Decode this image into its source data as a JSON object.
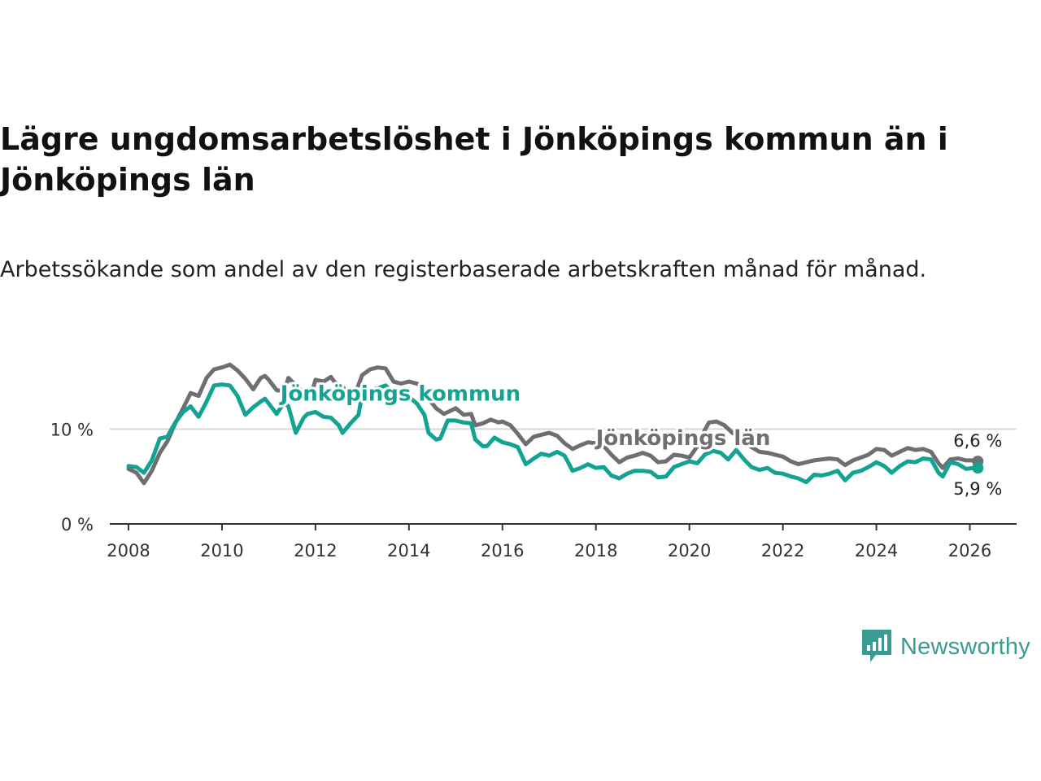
{
  "colors": {
    "kommun": "#12a393",
    "lan": "#6e6e73",
    "grid": "#d8d8d8",
    "axis": "#333333",
    "brand": "#3a9b93"
  },
  "chart_data": {
    "type": "line",
    "title": "Lägre ungdomsarbetslöshet i Jönköpings kommun än i Jönköpings län",
    "subtitle": "Arbetssökande som andel av den registerbaserade arbetskraften månad för månad.",
    "xlabel": "",
    "ylabel": "",
    "xlim": [
      2007.6,
      2027.0
    ],
    "ylim": [
      0,
      17.5
    ],
    "x_ticks": [
      {
        "value": 2008,
        "label": "2008"
      },
      {
        "value": 2010,
        "label": "2010"
      },
      {
        "value": 2012,
        "label": "2012"
      },
      {
        "value": 2014,
        "label": "2014"
      },
      {
        "value": 2016,
        "label": "2016"
      },
      {
        "value": 2018,
        "label": "2018"
      },
      {
        "value": 2020,
        "label": "2020"
      },
      {
        "value": 2022,
        "label": "2022"
      },
      {
        "value": 2024,
        "label": "2024"
      },
      {
        "value": 2026,
        "label": "2026"
      }
    ],
    "y_ticks": [
      {
        "value": 0,
        "label": "0 %"
      },
      {
        "value": 10,
        "label": "10 %"
      }
    ],
    "grid": true,
    "series": [
      {
        "name": "Jönköpings län",
        "color": "#6e6e73",
        "end_label": "6,6 %",
        "points": [
          [
            2008.0,
            5.8
          ],
          [
            2008.17,
            5.4
          ],
          [
            2008.33,
            4.3
          ],
          [
            2008.5,
            5.6
          ],
          [
            2008.67,
            7.5
          ],
          [
            2008.83,
            8.7
          ],
          [
            2009.0,
            10.6
          ],
          [
            2009.17,
            12.2
          ],
          [
            2009.33,
            13.8
          ],
          [
            2009.5,
            13.5
          ],
          [
            2009.67,
            15.4
          ],
          [
            2009.83,
            16.3
          ],
          [
            2010.0,
            16.5
          ],
          [
            2010.17,
            16.8
          ],
          [
            2010.33,
            16.2
          ],
          [
            2010.5,
            15.3
          ],
          [
            2010.67,
            14.2
          ],
          [
            2010.83,
            15.4
          ],
          [
            2010.92,
            15.6
          ],
          [
            2011.0,
            15.2
          ],
          [
            2011.17,
            14.1
          ],
          [
            2011.33,
            14.0
          ],
          [
            2011.42,
            15.4
          ],
          [
            2011.5,
            15.0
          ],
          [
            2011.67,
            14.2
          ],
          [
            2011.83,
            13.0
          ],
          [
            2011.92,
            13.8
          ],
          [
            2012.0,
            15.2
          ],
          [
            2012.17,
            15.0
          ],
          [
            2012.33,
            15.5
          ],
          [
            2012.42,
            14.9
          ],
          [
            2012.58,
            14.5
          ],
          [
            2012.75,
            13.2
          ],
          [
            2012.83,
            13.5
          ],
          [
            2013.0,
            15.7
          ],
          [
            2013.17,
            16.3
          ],
          [
            2013.33,
            16.5
          ],
          [
            2013.5,
            16.4
          ],
          [
            2013.67,
            15.0
          ],
          [
            2013.83,
            14.8
          ],
          [
            2014.0,
            15.0
          ],
          [
            2014.17,
            14.8
          ],
          [
            2014.33,
            14.4
          ],
          [
            2014.42,
            13.2
          ],
          [
            2014.58,
            12.2
          ],
          [
            2014.75,
            11.6
          ],
          [
            2014.92,
            12.0
          ],
          [
            2015.0,
            12.2
          ],
          [
            2015.17,
            11.5
          ],
          [
            2015.33,
            11.6
          ],
          [
            2015.42,
            10.4
          ],
          [
            2015.58,
            10.6
          ],
          [
            2015.75,
            11.0
          ],
          [
            2015.92,
            10.7
          ],
          [
            2016.0,
            10.8
          ],
          [
            2016.17,
            10.4
          ],
          [
            2016.33,
            9.5
          ],
          [
            2016.5,
            8.4
          ],
          [
            2016.67,
            9.2
          ],
          [
            2016.83,
            9.4
          ],
          [
            2017.0,
            9.6
          ],
          [
            2017.17,
            9.3
          ],
          [
            2017.33,
            8.5
          ],
          [
            2017.5,
            7.9
          ],
          [
            2017.67,
            8.3
          ],
          [
            2017.83,
            8.6
          ],
          [
            2018.0,
            8.5
          ],
          [
            2018.17,
            8.2
          ],
          [
            2018.33,
            7.3
          ],
          [
            2018.5,
            6.5
          ],
          [
            2018.67,
            7.0
          ],
          [
            2018.83,
            7.2
          ],
          [
            2019.0,
            7.5
          ],
          [
            2019.17,
            7.2
          ],
          [
            2019.33,
            6.5
          ],
          [
            2019.5,
            6.6
          ],
          [
            2019.67,
            7.3
          ],
          [
            2019.83,
            7.2
          ],
          [
            2020.0,
            7.0
          ],
          [
            2020.17,
            8.2
          ],
          [
            2020.33,
            9.9
          ],
          [
            2020.42,
            10.7
          ],
          [
            2020.58,
            10.8
          ],
          [
            2020.75,
            10.4
          ],
          [
            2020.92,
            9.6
          ],
          [
            2021.0,
            9.4
          ],
          [
            2021.17,
            8.8
          ],
          [
            2021.33,
            8.1
          ],
          [
            2021.5,
            7.6
          ],
          [
            2021.67,
            7.5
          ],
          [
            2021.83,
            7.3
          ],
          [
            2022.0,
            7.1
          ],
          [
            2022.17,
            6.6
          ],
          [
            2022.33,
            6.3
          ],
          [
            2022.5,
            6.5
          ],
          [
            2022.67,
            6.7
          ],
          [
            2022.83,
            6.8
          ],
          [
            2023.0,
            6.9
          ],
          [
            2023.17,
            6.8
          ],
          [
            2023.33,
            6.2
          ],
          [
            2023.5,
            6.7
          ],
          [
            2023.67,
            7.0
          ],
          [
            2023.83,
            7.3
          ],
          [
            2024.0,
            7.9
          ],
          [
            2024.17,
            7.8
          ],
          [
            2024.33,
            7.2
          ],
          [
            2024.5,
            7.6
          ],
          [
            2024.67,
            8.0
          ],
          [
            2024.83,
            7.8
          ],
          [
            2025.0,
            7.9
          ],
          [
            2025.17,
            7.6
          ],
          [
            2025.33,
            6.4
          ],
          [
            2025.42,
            5.9
          ],
          [
            2025.58,
            6.8
          ],
          [
            2025.75,
            6.9
          ],
          [
            2025.92,
            6.7
          ],
          [
            2026.08,
            6.7
          ],
          [
            2026.17,
            6.6
          ]
        ]
      },
      {
        "name": "Jönköpings kommun",
        "color": "#12a393",
        "end_label": "5,9 %",
        "points": [
          [
            2008.0,
            6.1
          ],
          [
            2008.17,
            6.0
          ],
          [
            2008.33,
            5.4
          ],
          [
            2008.5,
            6.7
          ],
          [
            2008.67,
            9.0
          ],
          [
            2008.83,
            9.2
          ],
          [
            2009.0,
            10.7
          ],
          [
            2009.17,
            11.8
          ],
          [
            2009.33,
            12.4
          ],
          [
            2009.5,
            11.3
          ],
          [
            2009.67,
            12.9
          ],
          [
            2009.83,
            14.6
          ],
          [
            2010.0,
            14.7
          ],
          [
            2010.17,
            14.6
          ],
          [
            2010.33,
            13.5
          ],
          [
            2010.5,
            11.5
          ],
          [
            2010.67,
            12.3
          ],
          [
            2010.83,
            12.9
          ],
          [
            2010.92,
            13.2
          ],
          [
            2011.0,
            12.7
          ],
          [
            2011.17,
            11.6
          ],
          [
            2011.33,
            12.8
          ],
          [
            2011.42,
            12.4
          ],
          [
            2011.58,
            9.6
          ],
          [
            2011.75,
            11.2
          ],
          [
            2011.83,
            11.6
          ],
          [
            2012.0,
            11.8
          ],
          [
            2012.17,
            11.3
          ],
          [
            2012.33,
            11.2
          ],
          [
            2012.5,
            10.4
          ],
          [
            2012.58,
            9.6
          ],
          [
            2012.75,
            10.6
          ],
          [
            2012.92,
            11.5
          ],
          [
            2013.0,
            13.7
          ],
          [
            2013.17,
            14.2
          ],
          [
            2013.33,
            14.3
          ],
          [
            2013.5,
            14.6
          ],
          [
            2013.67,
            13.8
          ],
          [
            2013.83,
            14.1
          ],
          [
            2014.0,
            13.4
          ],
          [
            2014.17,
            12.7
          ],
          [
            2014.33,
            11.5
          ],
          [
            2014.42,
            9.6
          ],
          [
            2014.58,
            8.9
          ],
          [
            2014.67,
            9.0
          ],
          [
            2014.83,
            10.9
          ],
          [
            2015.0,
            10.9
          ],
          [
            2015.17,
            10.7
          ],
          [
            2015.33,
            10.6
          ],
          [
            2015.42,
            8.9
          ],
          [
            2015.58,
            8.2
          ],
          [
            2015.67,
            8.2
          ],
          [
            2015.83,
            9.1
          ],
          [
            2016.0,
            8.6
          ],
          [
            2016.17,
            8.4
          ],
          [
            2016.33,
            8.1
          ],
          [
            2016.5,
            6.3
          ],
          [
            2016.67,
            6.9
          ],
          [
            2016.83,
            7.4
          ],
          [
            2017.0,
            7.2
          ],
          [
            2017.17,
            7.6
          ],
          [
            2017.33,
            7.2
          ],
          [
            2017.5,
            5.6
          ],
          [
            2017.67,
            5.9
          ],
          [
            2017.83,
            6.3
          ],
          [
            2018.0,
            5.9
          ],
          [
            2018.17,
            6.0
          ],
          [
            2018.33,
            5.1
          ],
          [
            2018.5,
            4.8
          ],
          [
            2018.67,
            5.3
          ],
          [
            2018.83,
            5.6
          ],
          [
            2019.0,
            5.6
          ],
          [
            2019.17,
            5.5
          ],
          [
            2019.33,
            4.9
          ],
          [
            2019.5,
            5.0
          ],
          [
            2019.67,
            6.0
          ],
          [
            2019.83,
            6.3
          ],
          [
            2020.0,
            6.6
          ],
          [
            2020.17,
            6.4
          ],
          [
            2020.33,
            7.3
          ],
          [
            2020.5,
            7.7
          ],
          [
            2020.67,
            7.5
          ],
          [
            2020.83,
            6.8
          ],
          [
            2021.0,
            7.8
          ],
          [
            2021.17,
            6.8
          ],
          [
            2021.33,
            6.0
          ],
          [
            2021.5,
            5.7
          ],
          [
            2021.67,
            5.9
          ],
          [
            2021.83,
            5.4
          ],
          [
            2022.0,
            5.3
          ],
          [
            2022.17,
            5.0
          ],
          [
            2022.33,
            4.8
          ],
          [
            2022.5,
            4.4
          ],
          [
            2022.67,
            5.2
          ],
          [
            2022.83,
            5.1
          ],
          [
            2023.0,
            5.3
          ],
          [
            2023.17,
            5.6
          ],
          [
            2023.33,
            4.6
          ],
          [
            2023.5,
            5.4
          ],
          [
            2023.67,
            5.6
          ],
          [
            2023.83,
            6.0
          ],
          [
            2024.0,
            6.5
          ],
          [
            2024.17,
            6.1
          ],
          [
            2024.33,
            5.4
          ],
          [
            2024.5,
            6.1
          ],
          [
            2024.67,
            6.6
          ],
          [
            2024.83,
            6.5
          ],
          [
            2025.0,
            6.9
          ],
          [
            2025.17,
            6.8
          ],
          [
            2025.33,
            5.4
          ],
          [
            2025.42,
            5.0
          ],
          [
            2025.58,
            6.5
          ],
          [
            2025.75,
            6.3
          ],
          [
            2025.92,
            5.8
          ],
          [
            2026.08,
            5.9
          ],
          [
            2026.17,
            5.9
          ]
        ]
      }
    ],
    "annotations": [
      {
        "text": "Jönköpings kommun",
        "series": "Jönköpings kommun",
        "x": 2011.25,
        "y": 13.0
      },
      {
        "text": "Jönköpings län",
        "series": "Jönköpings län",
        "x": 2018.0,
        "y": 8.3
      }
    ]
  },
  "brand": {
    "name": "Newsworthy"
  }
}
